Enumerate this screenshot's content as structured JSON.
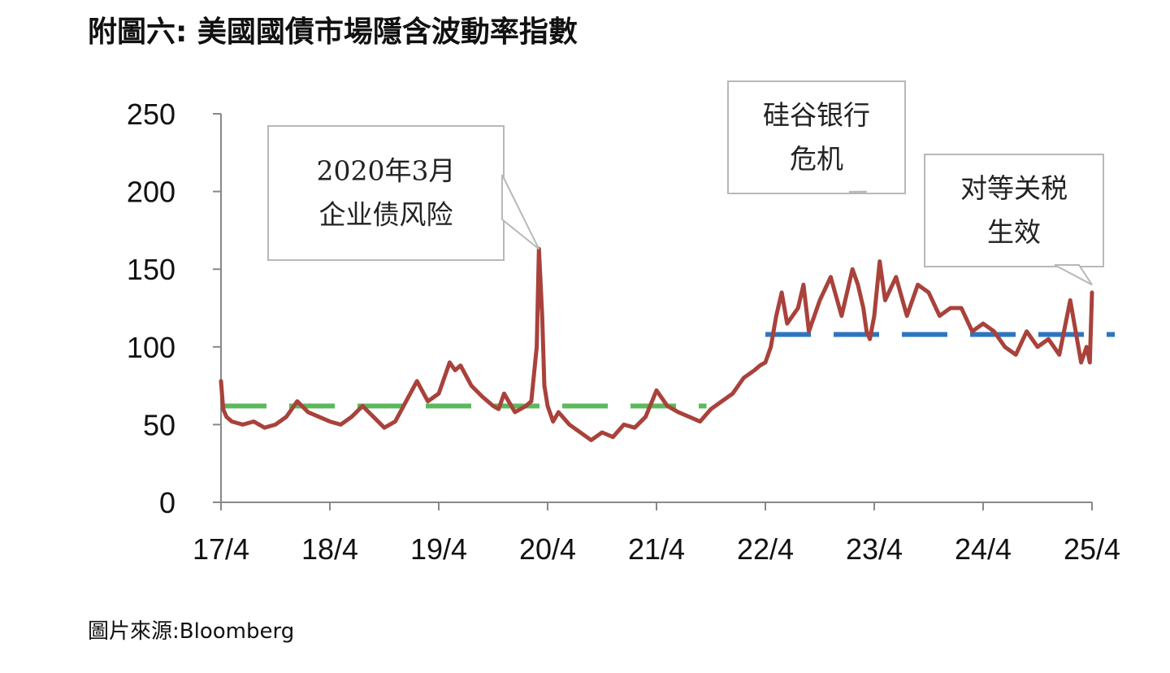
{
  "title": "附圖六: 美國國債市場隱含波動率指數",
  "source": "圖片來源:Bloomberg",
  "chart_data": {
    "type": "line",
    "x_tick_labels": [
      "17/4",
      "18/4",
      "19/4",
      "20/4",
      "21/4",
      "22/4",
      "23/4",
      "24/4",
      "25/4"
    ],
    "y_ticks": [
      0,
      50,
      100,
      150,
      200,
      250
    ],
    "ylim": [
      0,
      250
    ],
    "grid": false,
    "series": [
      {
        "color": "#a8423b",
        "x": [
          0,
          0.02,
          0.05,
          0.1,
          0.2,
          0.3,
          0.4,
          0.5,
          0.6,
          0.7,
          0.8,
          0.9,
          1.0,
          1.1,
          1.2,
          1.3,
          1.4,
          1.5,
          1.6,
          1.7,
          1.8,
          1.9,
          2.0,
          2.1,
          2.15,
          2.2,
          2.3,
          2.4,
          2.5,
          2.55,
          2.6,
          2.7,
          2.8,
          2.85,
          2.9,
          2.92,
          2.95,
          2.97,
          3.0,
          3.05,
          3.1,
          3.2,
          3.3,
          3.4,
          3.5,
          3.6,
          3.7,
          3.8,
          3.9,
          4.0,
          4.1,
          4.2,
          4.3,
          4.4,
          4.5,
          4.6,
          4.7,
          4.8,
          4.9,
          4.95,
          5.0,
          5.05,
          5.1,
          5.15,
          5.2,
          5.3,
          5.35,
          5.4,
          5.5,
          5.6,
          5.7,
          5.8,
          5.85,
          5.9,
          5.93,
          5.96,
          6.0,
          6.05,
          6.1,
          6.2,
          6.3,
          6.4,
          6.5,
          6.6,
          6.7,
          6.8,
          6.9,
          7.0,
          7.1,
          7.2,
          7.3,
          7.4,
          7.5,
          7.6,
          7.7,
          7.8,
          7.9,
          7.95,
          7.98,
          8.0
        ],
        "values": [
          78,
          60,
          55,
          52,
          50,
          52,
          48,
          50,
          55,
          65,
          58,
          55,
          52,
          50,
          55,
          62,
          55,
          48,
          52,
          65,
          78,
          65,
          70,
          90,
          85,
          88,
          75,
          68,
          62,
          60,
          70,
          58,
          62,
          65,
          100,
          163,
          120,
          75,
          62,
          52,
          58,
          50,
          45,
          40,
          45,
          42,
          50,
          48,
          55,
          72,
          62,
          58,
          55,
          52,
          60,
          65,
          70,
          80,
          85,
          88,
          90,
          100,
          120,
          135,
          115,
          125,
          140,
          110,
          130,
          145,
          120,
          150,
          140,
          125,
          110,
          105,
          120,
          155,
          130,
          145,
          120,
          140,
          135,
          120,
          125,
          125,
          110,
          115,
          110,
          100,
          95,
          110,
          100,
          105,
          95,
          130,
          90,
          100,
          90,
          135
        ]
      }
    ],
    "reference_lines": [
      {
        "value": 62,
        "x_range": [
          0,
          4.25
        ],
        "color": "#5cb85c",
        "style": "dashed"
      },
      {
        "value": 108,
        "x_range": [
          5.0,
          8.0
        ],
        "color": "#2e75c0",
        "style": "dashed"
      }
    ],
    "annotations": [
      {
        "lines": [
          "2020年3月",
          "企业债风险"
        ],
        "point_x": 2.92,
        "point_y": 163
      },
      {
        "lines": [
          "硅谷银行",
          "危机"
        ],
        "point_x": 5.93,
        "point_y": 200
      },
      {
        "lines": [
          "对等关税",
          "生效"
        ],
        "point_x": 8.0,
        "point_y": 140
      }
    ]
  }
}
